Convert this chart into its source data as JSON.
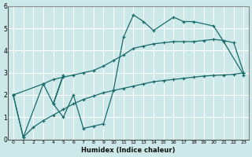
{
  "xlabel": "Humidex (Indice chaleur)",
  "bg_color": "#cce8e8",
  "line_color": "#1a6b6b",
  "grid_color": "#ffffff",
  "xlim": [
    -0.5,
    23.5
  ],
  "ylim": [
    0,
    6
  ],
  "yticks": [
    0,
    1,
    2,
    3,
    4,
    5,
    6
  ],
  "xticks": [
    0,
    1,
    2,
    3,
    4,
    5,
    6,
    7,
    8,
    9,
    10,
    11,
    12,
    13,
    14,
    15,
    16,
    17,
    18,
    19,
    20,
    21,
    22,
    23
  ],
  "line1_x": [
    0,
    1,
    3,
    4,
    5,
    4,
    5,
    6,
    7,
    8,
    9,
    10,
    11,
    12,
    13,
    14,
    16,
    17,
    18,
    20,
    21,
    23
  ],
  "line1_y": [
    2.0,
    0.1,
    2.5,
    1.6,
    2.9,
    1.6,
    1.0,
    2.0,
    0.5,
    0.6,
    0.7,
    2.2,
    4.6,
    5.6,
    5.3,
    4.9,
    5.5,
    5.3,
    5.3,
    5.1,
    4.4,
    2.9
  ],
  "line2_x": [
    0,
    3,
    4,
    5,
    6,
    7,
    8,
    9,
    10,
    11,
    12,
    13,
    14,
    15,
    16,
    17,
    18,
    19,
    20,
    21,
    22,
    23
  ],
  "line2_y": [
    2.0,
    2.5,
    2.7,
    2.8,
    2.9,
    3.0,
    3.1,
    3.3,
    3.55,
    3.8,
    4.1,
    4.2,
    4.3,
    4.35,
    4.4,
    4.4,
    4.4,
    4.45,
    4.5,
    4.45,
    4.35,
    3.0
  ],
  "line3_x": [
    0,
    1,
    2,
    3,
    4,
    5,
    6,
    7,
    8,
    9,
    10,
    11,
    12,
    13,
    14,
    15,
    16,
    17,
    18,
    19,
    20,
    21,
    22,
    23
  ],
  "line3_y": [
    2.0,
    0.1,
    0.55,
    0.85,
    1.1,
    1.35,
    1.6,
    1.8,
    1.95,
    2.1,
    2.2,
    2.3,
    2.4,
    2.5,
    2.6,
    2.65,
    2.7,
    2.75,
    2.8,
    2.85,
    2.88,
    2.9,
    2.93,
    3.0
  ]
}
